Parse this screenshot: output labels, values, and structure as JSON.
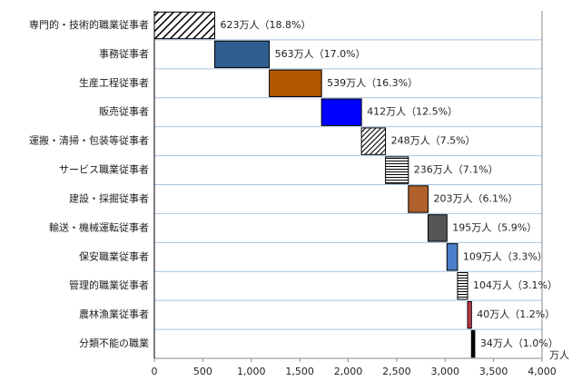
{
  "chart_data": {
    "type": "waterfall",
    "categories": [
      "専門的・技術的職業従事者",
      "事務従事者",
      "生産工程従事者",
      "販売従事者",
      "運搬・清掃・包装等従事者",
      "サービス職業従事者",
      "建設・採掘従事者",
      "輸送・機械運転従事者",
      "保安職業従事者",
      "管理的職業従事者",
      "農林漁業従事者",
      "分類不能の職業"
    ],
    "values": [
      623,
      563,
      539,
      412,
      248,
      236,
      203,
      195,
      109,
      104,
      40,
      34
    ],
    "value_labels": [
      "623万人（18.8%）",
      "563万人（17.0%）",
      "539万人（16.3%）",
      "412万人（12.5%）",
      "248万人（7.5%）",
      "236万人（7.1%）",
      "203万人（6.1%）",
      "195万人（5.9%）",
      "109万人（3.3%）",
      "104万人（3.1%）",
      "40万人（1.2%）",
      "34万人（1.0%）"
    ],
    "colors": [
      "#000000",
      "#2f5d8f",
      "#b35600",
      "#0000ff",
      "#000000",
      "#000000",
      "#b0602a",
      "#555555",
      "#4a7ec8",
      "#000000",
      "#c0394b",
      "#000000"
    ],
    "patterns": [
      "diagonal",
      "solid",
      "solid",
      "solid",
      "diagonal-dense",
      "horizontal",
      "solid",
      "solid",
      "solid",
      "horizontal",
      "solid",
      "solid"
    ],
    "x_unit": "万人",
    "xlim": [
      0,
      4000
    ],
    "xticks": [
      0,
      500,
      {
        "value": 1000,
        "label": "1,000"
      },
      {
        "value": 1500,
        "label": "1,500"
      },
      {
        "value": 2000,
        "label": "2,000"
      },
      {
        "value": 2500,
        "label": "2,500"
      },
      {
        "value": 3000,
        "label": "3,000"
      },
      {
        "value": 3500,
        "label": "3,500"
      },
      {
        "value": 4000,
        "label": "4,000"
      }
    ]
  }
}
